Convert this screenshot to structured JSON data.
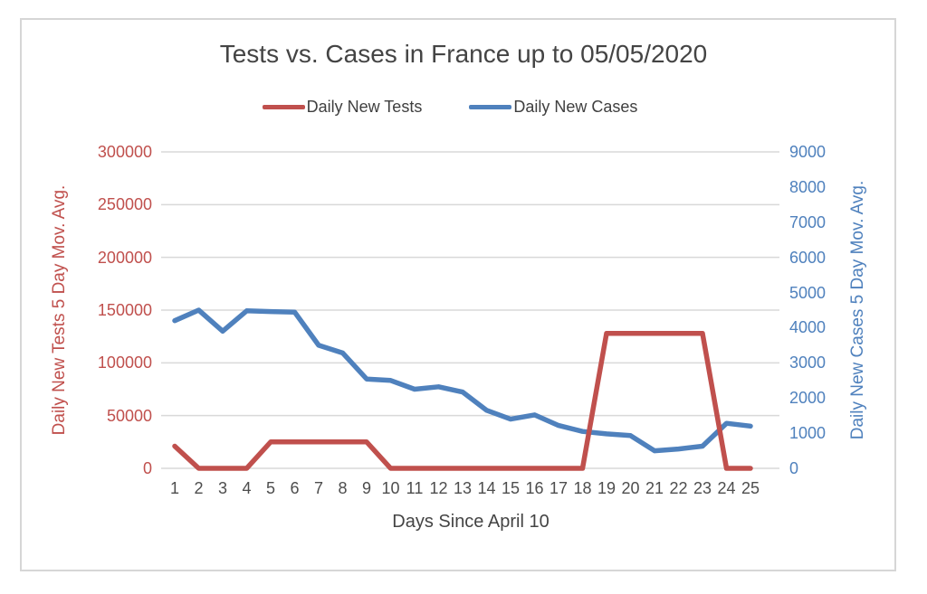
{
  "title": "Tests vs. Cases in France up to 05/05/2020",
  "legend": {
    "items": [
      {
        "label": "Daily New Tests",
        "color": "#c0504d"
      },
      {
        "label": "Daily New Cases",
        "color": "#4f81bd"
      }
    ]
  },
  "left_axis": {
    "title": "Daily New Tests 5 Day Mov. Avg.",
    "color": "#c0504d",
    "ticks": [
      "0",
      "50000",
      "100000",
      "150000",
      "200000",
      "250000",
      "300000"
    ]
  },
  "right_axis": {
    "title": "Daily  New Cases 5 Day Mov. Avg.",
    "color": "#4f81bd",
    "ticks": [
      "0",
      "1000",
      "2000",
      "3000",
      "4000",
      "5000",
      "6000",
      "7000",
      "8000",
      "9000"
    ]
  },
  "x_axis": {
    "title": "Days Since April 10",
    "labels": [
      "1",
      "2",
      "3",
      "4",
      "5",
      "6",
      "7",
      "8",
      "9",
      "10",
      "11",
      "12",
      "13",
      "14",
      "15",
      "16",
      "17",
      "18",
      "19",
      "20",
      "21",
      "22",
      "23",
      "24",
      "25"
    ]
  },
  "chart_data": {
    "type": "line",
    "title": "Tests vs. Cases in France up to 05/05/2020",
    "xlabel": "Days Since April 10",
    "ylabel_left": "Daily New Tests 5 Day Mov. Avg.",
    "ylabel_right": "Daily New Cases 5 Day Mov. Avg.",
    "x": [
      1,
      2,
      3,
      4,
      5,
      6,
      7,
      8,
      9,
      10,
      11,
      12,
      13,
      14,
      15,
      16,
      17,
      18,
      19,
      20,
      21,
      22,
      23,
      24,
      25
    ],
    "ylim_left": [
      0,
      300000
    ],
    "ylim_right": [
      0,
      9000
    ],
    "grid": true,
    "legend_position": "top-center",
    "gridline_color": "#d9d9d9",
    "series": [
      {
        "name": "Daily New Tests",
        "axis": "left",
        "color": "#c0504d",
        "values": [
          21000,
          0,
          0,
          0,
          25000,
          25000,
          25000,
          25000,
          25000,
          0,
          0,
          0,
          0,
          0,
          0,
          0,
          0,
          0,
          128000,
          128000,
          128000,
          128000,
          128000,
          0,
          0
        ]
      },
      {
        "name": "Daily New Cases",
        "axis": "right",
        "color": "#4f81bd",
        "values": [
          4200,
          4500,
          3900,
          4480,
          4460,
          4440,
          3500,
          3280,
          2540,
          2500,
          2250,
          2320,
          2170,
          1650,
          1400,
          1520,
          1220,
          1050,
          980,
          930,
          500,
          550,
          630,
          1280,
          1200
        ]
      }
    ]
  }
}
